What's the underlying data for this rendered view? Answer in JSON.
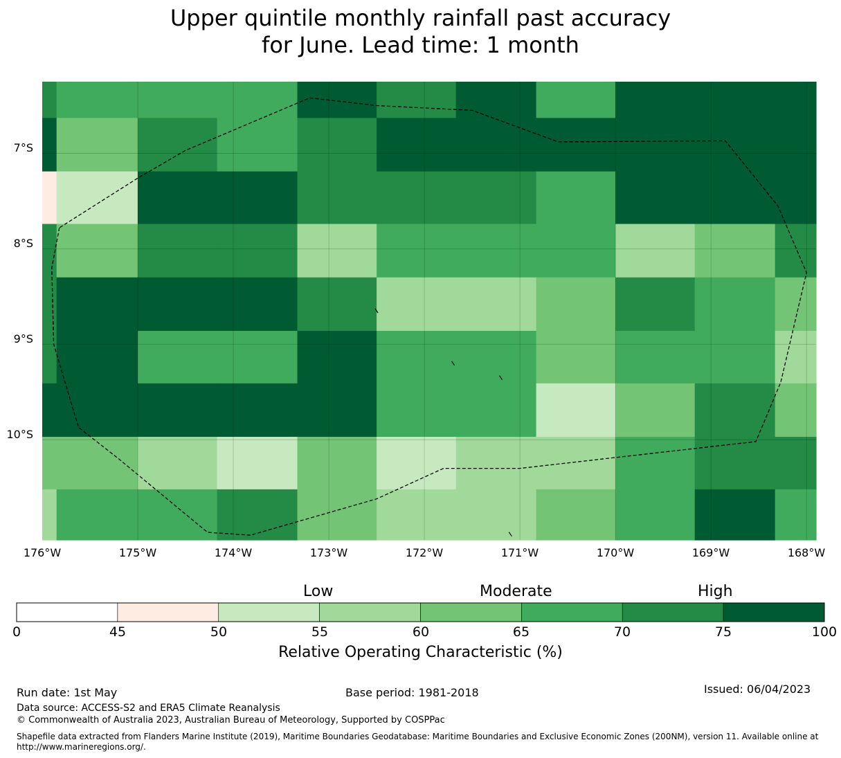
{
  "title": {
    "line1": "Upper quintile monthly rainfall past accuracy",
    "line2": "for June. Lead time: 1 month"
  },
  "map": {
    "lat_labels": [
      "7°S",
      "8°S",
      "9°S",
      "10°S"
    ],
    "lon_labels": [
      "176°W",
      "175°W",
      "174°W",
      "173°W",
      "172°W",
      "171°W",
      "170°W",
      "169°W",
      "168°W"
    ],
    "extent": {
      "lon_min": -176,
      "lon_max": -167.9,
      "lat_top": -6.25,
      "lat_bottom": -11.05
    },
    "grid_lat_edges": [
      -6.25,
      -6.63,
      -7.19,
      -7.74,
      -8.3,
      -8.86,
      -9.41,
      -9.97,
      -10.52,
      -11.05
    ],
    "grid_lon_edges": [
      -176.0,
      -175.85,
      -175.0,
      -174.17,
      -173.33,
      -172.5,
      -171.67,
      -170.83,
      -170.0,
      -169.17,
      -168.33,
      -167.9
    ],
    "roc_grid": [
      [
        72,
        67,
        67,
        67,
        78,
        72,
        78,
        67,
        78,
        78,
        78
      ],
      [
        78,
        62,
        72,
        67,
        72,
        78,
        78,
        78,
        78,
        78,
        78
      ],
      [
        47,
        52,
        78,
        78,
        72,
        72,
        72,
        67,
        78,
        78,
        78
      ],
      [
        72,
        62,
        72,
        72,
        57,
        67,
        67,
        67,
        57,
        62,
        72
      ],
      [
        72,
        78,
        78,
        78,
        72,
        57,
        57,
        62,
        72,
        67,
        62
      ],
      [
        72,
        78,
        67,
        67,
        78,
        67,
        67,
        62,
        67,
        67,
        57
      ],
      [
        78,
        78,
        78,
        78,
        78,
        67,
        67,
        52,
        62,
        72,
        62
      ],
      [
        62,
        62,
        57,
        52,
        62,
        52,
        57,
        57,
        67,
        72,
        72
      ],
      [
        57,
        67,
        67,
        72,
        62,
        57,
        57,
        62,
        67,
        78,
        67
      ]
    ],
    "eez_boundary": [
      [
        -175.82,
        -7.78
      ],
      [
        -175.9,
        -8.2
      ],
      [
        -175.88,
        -9.0
      ],
      [
        -175.62,
        -9.87
      ],
      [
        -175.2,
        -10.2
      ],
      [
        -174.27,
        -10.97
      ],
      [
        -173.82,
        -11.0
      ],
      [
        -172.5,
        -10.62
      ],
      [
        -171.8,
        -10.3
      ],
      [
        -171.0,
        -10.3
      ],
      [
        -168.53,
        -10.02
      ],
      [
        -168.27,
        -9.4
      ],
      [
        -168.0,
        -8.25
      ],
      [
        -168.3,
        -7.55
      ],
      [
        -168.85,
        -6.87
      ],
      [
        -170.6,
        -6.88
      ],
      [
        -171.5,
        -6.55
      ],
      [
        -172.5,
        -6.5
      ],
      [
        -173.2,
        -6.42
      ],
      [
        -174.5,
        -6.97
      ],
      [
        -175.0,
        -7.26
      ],
      [
        -175.82,
        -7.78
      ]
    ],
    "islets": [
      [
        -172.5,
        -8.65
      ],
      [
        -171.7,
        -9.2
      ],
      [
        -171.2,
        -9.35
      ],
      [
        -171.1,
        -10.99
      ]
    ]
  },
  "colorbar": {
    "ticks": [
      "0",
      "45",
      "50",
      "55",
      "60",
      "65",
      "70",
      "75",
      "100"
    ],
    "colors": [
      "#ffffff",
      "#feebe2",
      "#c7e9c0",
      "#a1d99b",
      "#74c476",
      "#41ab5d",
      "#238b45",
      "#005a32"
    ],
    "category_labels": [
      "Low",
      "Moderate",
      "High"
    ],
    "label": "Relative Operating Characteristic (%)"
  },
  "footer": {
    "run_date": "Run date: 1st May",
    "base_period": "Base period: 1981-2018",
    "issued": "Issued: 06/04/2023",
    "data_source": "Data source: ACCESS-S2 and ERA5 Climate Reanalysis",
    "copyright": "© Commonwealth of Australia 2023, Australian Bureau of Meteorology, Supported by COSPPac",
    "shapefile_line1": "Shapefile data extracted from Flanders Marine Institute (2019), Maritime Boundaries Geodatabase: Maritime Boundaries and Exclusive Economic Zones (200NM), version 11. Available online at",
    "shapefile_line2": "http://www.marineregions.org/."
  }
}
